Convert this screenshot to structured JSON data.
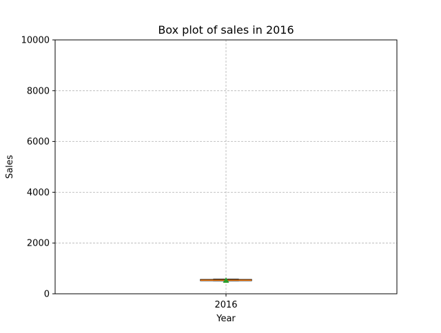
{
  "chart_data": {
    "type": "box",
    "title": "Box plot of sales in 2016",
    "xlabel": "Year",
    "ylabel": "Sales",
    "categories": [
      "2016"
    ],
    "ylim": [
      0,
      10000
    ],
    "yticks": [
      0,
      2000,
      4000,
      6000,
      8000,
      10000
    ],
    "grid": true,
    "boxes": [
      {
        "category": "2016",
        "whisker_low": 510,
        "q1": 515,
        "median": 535,
        "q3": 565,
        "whisker_high": 575,
        "mean": 530
      }
    ],
    "colors": {
      "box": "#000000",
      "median": "#ff7f0e",
      "mean": "#2ca02c",
      "grid": "#b0b0b0"
    }
  }
}
